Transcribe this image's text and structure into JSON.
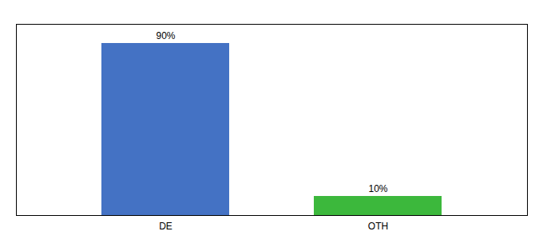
{
  "chart_data": {
    "type": "bar",
    "categories": [
      "DE",
      "OTH"
    ],
    "values": [
      90,
      10
    ],
    "value_labels": [
      "90%",
      "10%"
    ],
    "colors": [
      "#4472c4",
      "#3cb83c"
    ],
    "ylim": [
      0,
      100
    ],
    "data_labels": true,
    "tick_labels": "x"
  }
}
